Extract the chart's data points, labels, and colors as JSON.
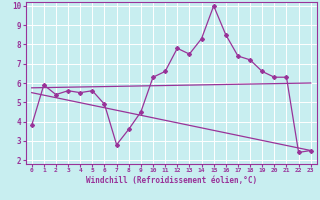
{
  "xlabel": "Windchill (Refroidissement éolien,°C)",
  "ylabel": "",
  "background_color": "#c8eef0",
  "line_color": "#993399",
  "grid_color": "#ffffff",
  "xlim": [
    -0.5,
    23.5
  ],
  "ylim": [
    1.8,
    10.2
  ],
  "xticks": [
    0,
    1,
    2,
    3,
    4,
    5,
    6,
    7,
    8,
    9,
    10,
    11,
    12,
    13,
    14,
    15,
    16,
    17,
    18,
    19,
    20,
    21,
    22,
    23
  ],
  "yticks": [
    2,
    3,
    4,
    5,
    6,
    7,
    8,
    9,
    10
  ],
  "hours": [
    0,
    1,
    2,
    3,
    4,
    5,
    6,
    7,
    8,
    9,
    10,
    11,
    12,
    13,
    14,
    15,
    16,
    17,
    18,
    19,
    20,
    21,
    22,
    23
  ],
  "line1": [
    3.8,
    5.9,
    5.4,
    5.6,
    5.5,
    5.6,
    4.9,
    2.8,
    3.6,
    4.5,
    6.3,
    6.6,
    7.8,
    7.5,
    8.3,
    10.0,
    8.5,
    7.4,
    7.2,
    6.6,
    6.3,
    6.3,
    2.4,
    2.5
  ],
  "line2_x": [
    0,
    23
  ],
  "line2_y": [
    5.75,
    6.0
  ],
  "line3_x": [
    0,
    23
  ],
  "line3_y": [
    5.5,
    2.5
  ],
  "marker": "D",
  "markersize": 2.0,
  "linewidth": 0.9
}
